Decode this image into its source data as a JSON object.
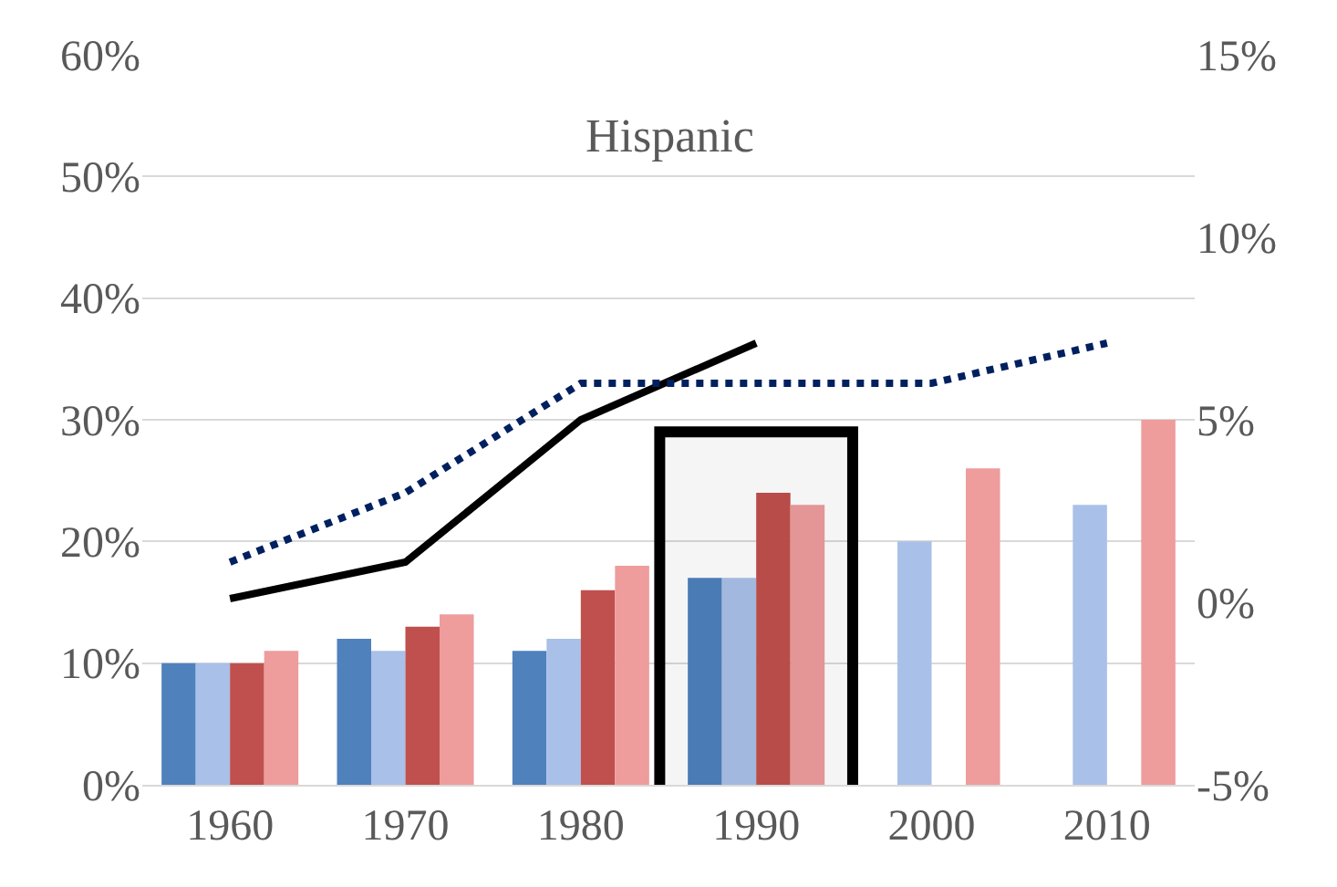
{
  "chart_data": {
    "type": "bar",
    "title": "Hispanic",
    "categories": [
      "1960",
      "1970",
      "1980",
      "1990",
      "2000",
      "2010"
    ],
    "series": [
      {
        "color": "#4f81bd",
        "values": [
          10,
          12,
          11,
          17,
          null,
          null
        ]
      },
      {
        "color": "#a9c0e8",
        "values": [
          10,
          11,
          12,
          17,
          20,
          23
        ]
      },
      {
        "color": "#c0504d",
        "values": [
          10,
          13,
          16,
          24,
          null,
          null
        ]
      },
      {
        "color": "#ee9c9c",
        "values": [
          11,
          14,
          18,
          23,
          26,
          30
        ]
      },
      {
        "type": "line",
        "axis": "y2",
        "color": "#000000",
        "line_style": "solid",
        "values": [
          0.1,
          1.1,
          5.0,
          7.1,
          null,
          null
        ]
      },
      {
        "type": "line",
        "axis": "y2",
        "color": "#002060",
        "line_style": "dotted",
        "values": [
          1.1,
          3.0,
          6.0,
          6.0,
          6.0,
          7.1
        ]
      }
    ],
    "ylim": [
      0,
      60
    ],
    "yticks": [
      {
        "value": 0,
        "label": "0%"
      },
      {
        "value": 10,
        "label": "10%"
      },
      {
        "value": 20,
        "label": "20%"
      },
      {
        "value": 30,
        "label": "30%"
      },
      {
        "value": 40,
        "label": "40%"
      },
      {
        "value": 50,
        "label": "50%"
      },
      {
        "value": 60,
        "label": "60%"
      }
    ],
    "y2lim": [
      -5,
      15
    ],
    "y2ticks": [
      {
        "value": -5,
        "label": "-5%"
      },
      {
        "value": 0,
        "label": "0%"
      },
      {
        "value": 5,
        "label": "5%"
      },
      {
        "value": 10,
        "label": "10%"
      },
      {
        "value": 15,
        "label": "15%"
      }
    ],
    "bands": [
      {
        "axis": "x",
        "from": "1990",
        "to": "1990",
        "color": "#000000"
      }
    ],
    "grid": "y",
    "marker": "none"
  }
}
